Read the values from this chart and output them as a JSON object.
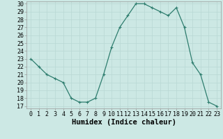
{
  "title": "",
  "xlabel": "Humidex (Indice chaleur)",
  "ylabel": "",
  "x": [
    0,
    1,
    2,
    3,
    4,
    5,
    6,
    7,
    8,
    9,
    10,
    11,
    12,
    13,
    14,
    15,
    16,
    17,
    18,
    19,
    20,
    21,
    22,
    23
  ],
  "y": [
    23,
    22,
    21,
    20.5,
    20,
    18,
    17.5,
    17.5,
    18,
    21,
    24.5,
    27,
    28.5,
    30,
    30,
    29.5,
    29,
    28.5,
    29.5,
    27,
    22.5,
    21,
    17.5,
    17
  ],
  "line_color": "#2e7d6e",
  "marker": "+",
  "marker_color": "#2e7d6e",
  "bg_color": "#cce8e4",
  "grid_color": "#b8d8d4",
  "ylim": [
    17,
    30
  ],
  "yticks": [
    17,
    18,
    19,
    20,
    21,
    22,
    23,
    24,
    25,
    26,
    27,
    28,
    29,
    30
  ],
  "xticks": [
    0,
    1,
    2,
    3,
    4,
    5,
    6,
    7,
    8,
    9,
    10,
    11,
    12,
    13,
    14,
    15,
    16,
    17,
    18,
    19,
    20,
    21,
    22,
    23
  ],
  "xlabel_fontsize": 7.5,
  "tick_fontsize": 6.0
}
